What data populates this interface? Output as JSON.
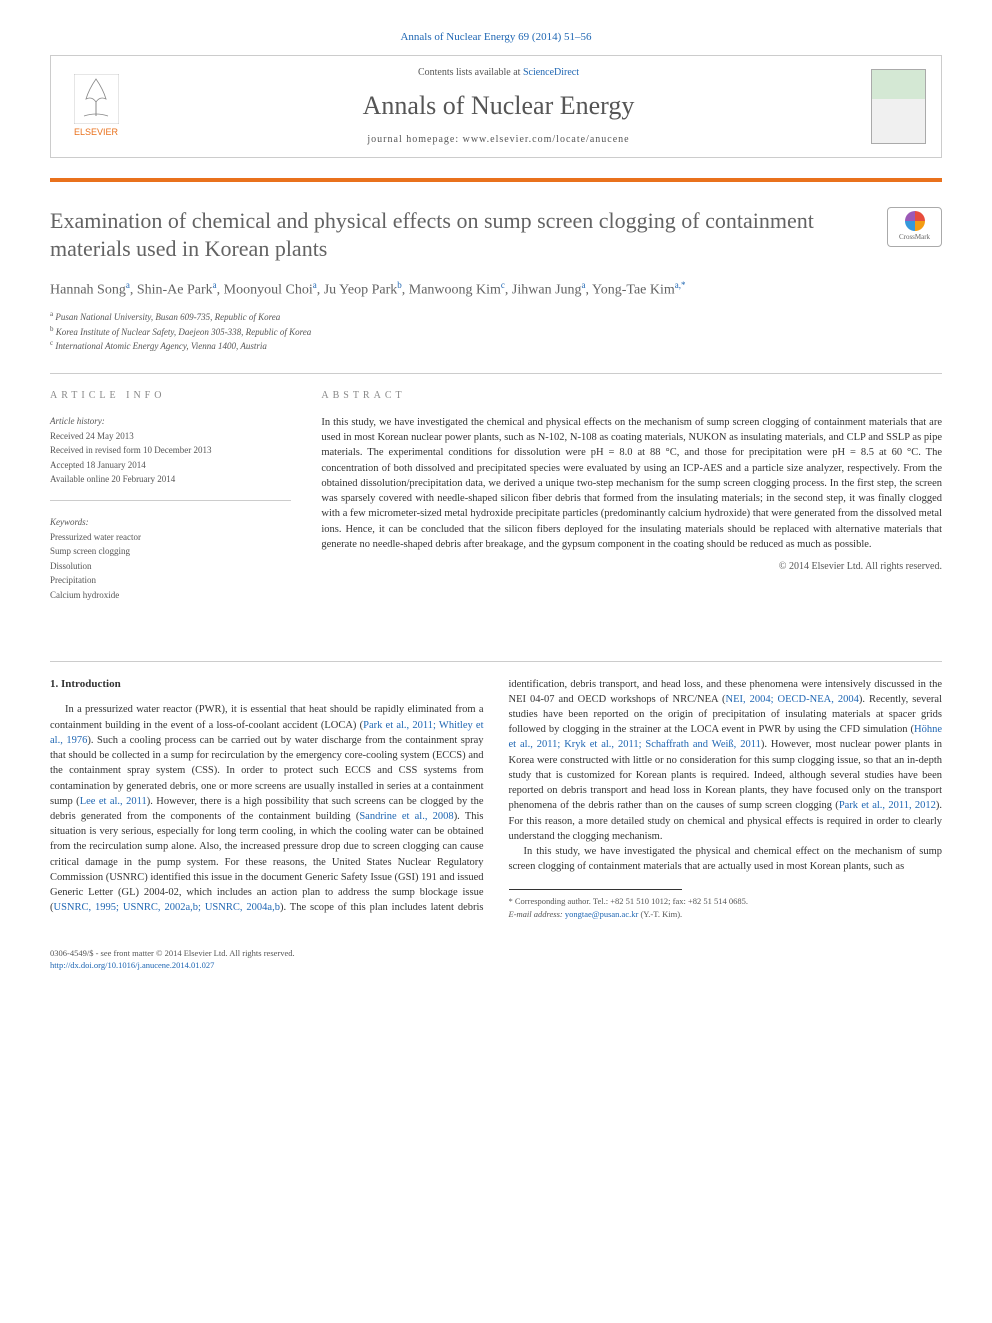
{
  "header": {
    "citation_line": "Annals of Nuclear Energy 69 (2014) 51–56",
    "contents_text": "Contents lists available at ",
    "sciencedirect": "ScienceDirect",
    "journal_name": "Annals of Nuclear Energy",
    "homepage_label": "journal homepage: ",
    "homepage_url": "www.elsevier.com/locate/anucene",
    "elsevier_name": "ELSEVIER"
  },
  "crossmark_label": "CrossMark",
  "title": "Examination of chemical and physical effects on sump screen clogging of containment materials used in Korean plants",
  "authors_html": "Hannah Song<sup class='author-sup'>a</sup>, Shin-Ae Park<sup class='author-sup'>a</sup>, Moonyoul Choi<sup class='author-sup'>a</sup>, Ju Yeop Park<sup class='author-sup'>b</sup>, Manwoong Kim<sup class='author-sup'>c</sup>, Jihwan Jung<sup class='author-sup'>a</sup>, Yong-Tae Kim<sup class='author-sup'>a,*</sup>",
  "affiliations": [
    {
      "sup": "a",
      "text": "Pusan National University, Busan 609-735, Republic of Korea"
    },
    {
      "sup": "b",
      "text": "Korea Institute of Nuclear Safety, Daejeon 305-338, Republic of Korea"
    },
    {
      "sup": "c",
      "text": "International Atomic Energy Agency, Vienna 1400, Austria"
    }
  ],
  "article_info": {
    "header": "ARTICLE INFO",
    "history_label": "Article history:",
    "history": [
      "Received 24 May 2013",
      "Received in revised form 10 December 2013",
      "Accepted 18 January 2014",
      "Available online 20 February 2014"
    ],
    "keywords_label": "Keywords:",
    "keywords": [
      "Pressurized water reactor",
      "Sump screen clogging",
      "Dissolution",
      "Precipitation",
      "Calcium hydroxide"
    ]
  },
  "abstract": {
    "header": "ABSTRACT",
    "text": "In this study, we have investigated the chemical and physical effects on the mechanism of sump screen clogging of containment materials that are used in most Korean nuclear power plants, such as N-102, N-108 as coating materials, NUKON as insulating materials, and CLP and SSLP as pipe materials. The experimental conditions for dissolution were pH = 8.0 at 88 °C, and those for precipitation were pH = 8.5 at 60 °C. The concentration of both dissolved and precipitated species were evaluated by using an ICP-AES and a particle size analyzer, respectively. From the obtained dissolution/precipitation data, we derived a unique two-step mechanism for the sump screen clogging process. In the first step, the screen was sparsely covered with needle-shaped silicon fiber debris that formed from the insulating materials; in the second step, it was finally clogged with a few micrometer-sized metal hydroxide precipitate particles (predominantly calcium hydroxide) that were generated from the dissolved metal ions. Hence, it can be concluded that the silicon fibers deployed for the insulating materials should be replaced with alternative materials that generate no needle-shaped debris after breakage, and the gypsum component in the coating should be reduced as much as possible.",
    "copyright": "© 2014 Elsevier Ltd. All rights reserved."
  },
  "body": {
    "heading": "1. Introduction",
    "p1_pre": "In a pressurized water reactor (PWR), it is essential that heat should be rapidly eliminated from a containment building in the event of a loss-of-coolant accident (LOCA) (",
    "p1_cite1": "Park et al., 2011; Whitley et al., 1976",
    "p1_mid1": "). Such a cooling process can be carried out by water discharge from the containment spray that should be collected in a sump for recirculation by the emergency core-cooling system (ECCS) and the containment spray system (CSS). In order to protect such ECCS and CSS systems from contamination by generated debris, one or more screens are usually installed in series at a containment sump (",
    "p1_cite2": "Lee et al., 2011",
    "p1_mid2": "). However, there is a high possibility that such screens can be clogged by the debris generated from the components of the containment building (",
    "p1_cite3": "Sandrine et al., 2008",
    "p1_mid3": "). This situation is very serious, especially for long term cooling, in which the cooling water can be obtained from the recirculation sump alone. Also, the increased pressure drop due to screen clogging can cause critical damage in the pump system. For these reasons, the United States Nuclear Regulatory Commission (USNRC) identified this issue in the document Generic Safety ",
    "p1_col2_pre": "Issue (GSI) 191 and issued Generic Letter (GL) 2004-02, which includes an action plan to address the sump blockage issue (",
    "p1_cite4": "USNRC, 1995; USNRC, 2002a,b; USNRC, 2004a,b",
    "p1_col2_mid1": "). The scope of this plan includes latent debris identification, debris transport, and head loss, and these phenomena were intensively discussed in the NEI 04-07 and OECD workshops of NRC/NEA (",
    "p1_cite5": "NEI, 2004; OECD-NEA, 2004",
    "p1_col2_mid2": "). Recently, several studies have been reported on the origin of precipitation of insulating materials at spacer grids followed by clogging in the strainer at the LOCA event in PWR by using the CFD simulation (",
    "p1_cite6": "Höhne et al., 2011; Kryk et al., 2011; Schaffrath and Weiß, 2011",
    "p1_col2_mid3": "). However, most nuclear power plants in Korea were constructed with little or no consideration for this sump clogging issue, so that an in-depth study that is customized for Korean plants is required. Indeed, although several studies have been reported on debris transport and head loss in Korean plants, they have focused only on the transport phenomena of the debris rather than on the causes of sump screen clogging (",
    "p1_cite7": "Park et al., 2011, 2012",
    "p1_col2_end": "). For this reason, a more detailed study on chemical and physical effects is required in order to clearly understand the clogging mechanism.",
    "p2": "In this study, we have investigated the physical and chemical effect on the mechanism of sump screen clogging of containment materials that are actually used in most Korean plants, such as"
  },
  "footnote": {
    "corr_label": "* Corresponding author. Tel.: +82 51 510 1012; fax: +82 51 514 0685.",
    "email_label": "E-mail address: ",
    "email": "yongtae@pusan.ac.kr",
    "email_suffix": " (Y.-T. Kim)."
  },
  "bottom": {
    "issn_line": "0306-4549/$ - see front matter © 2014 Elsevier Ltd. All rights reserved.",
    "doi_label": "http://dx.doi.org/",
    "doi": "10.1016/j.anucene.2014.01.027"
  },
  "colors": {
    "link": "#2067b3",
    "orange": "#e9711c",
    "heading_gray": "#636363"
  }
}
